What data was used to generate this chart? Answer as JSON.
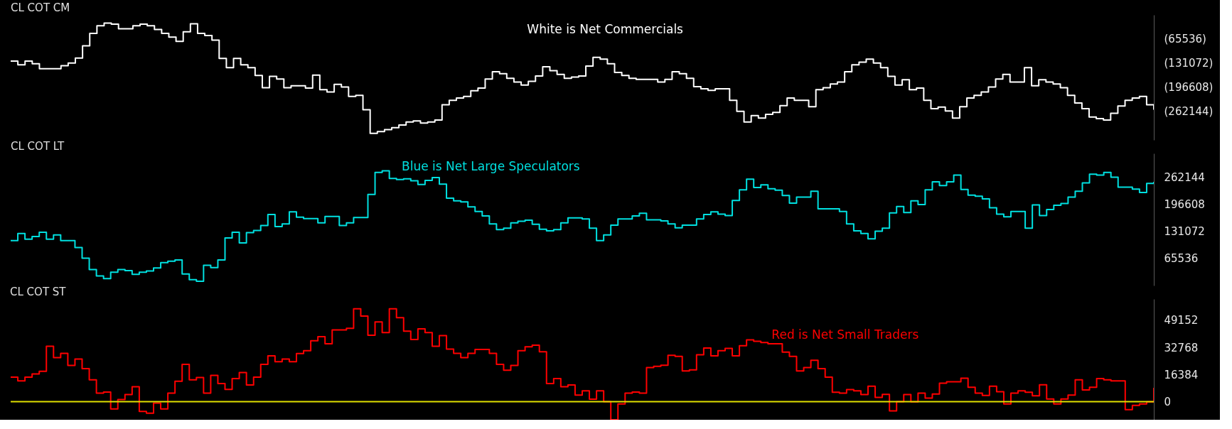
{
  "chart_data": [
    {
      "type": "step",
      "title": "CL COT CM",
      "annotations": [
        "White is Net Commercials"
      ],
      "tick_labels": "y",
      "grid": false,
      "categories": [
        null,
        null,
        null,
        null,
        null,
        null,
        null,
        null,
        null,
        null,
        null,
        null,
        null,
        null,
        null,
        null,
        null,
        null,
        null,
        null,
        null,
        null,
        null,
        null,
        null,
        null,
        null,
        null,
        null,
        null,
        null,
        null,
        null,
        null,
        null,
        null,
        null,
        null,
        null,
        null,
        null,
        null,
        null,
        null,
        null,
        null,
        null,
        null,
        null,
        null,
        null,
        null,
        null,
        null,
        null,
        null,
        null,
        null,
        null,
        null,
        null,
        null,
        null,
        null,
        null,
        null,
        null,
        null,
        null,
        null,
        null,
        null,
        null,
        null,
        null,
        null,
        null,
        null,
        null,
        null,
        null,
        null,
        null,
        null,
        null,
        null,
        null,
        null,
        null,
        null,
        null,
        null,
        null,
        null,
        null,
        null,
        null,
        null,
        null,
        null,
        null,
        null,
        null,
        null,
        null,
        null,
        null,
        null,
        null,
        null,
        null,
        null,
        null,
        null,
        null,
        null,
        null,
        null,
        null,
        null,
        null,
        null,
        null,
        null,
        null,
        null,
        null,
        null,
        null,
        null,
        null,
        null,
        null,
        null,
        null,
        null,
        null,
        null,
        null,
        null,
        null,
        null,
        null,
        null,
        null,
        null,
        null,
        null,
        null,
        null,
        null,
        null,
        null,
        null,
        null,
        null,
        null,
        null,
        null,
        null
      ],
      "ylim": [
        -340000,
        0
      ],
      "series": [
        {
          "color": "#ffffff",
          "values": [
            -125600,
            -135900,
            -125600,
            -132800,
            -146300,
            -146300,
            -146300,
            -138000,
            -130800,
            -117300,
            -84200,
            -50000,
            -29300,
            -22100,
            -25200,
            -37600,
            -37600,
            -29300,
            -25200,
            -29300,
            -39700,
            -50000,
            -60400,
            -71800,
            -45900,
            -24100,
            -50000,
            -56200,
            -68700,
            -118300,
            -143200,
            -118300,
            -135900,
            -143200,
            -164900,
            -198000,
            -167000,
            -174200,
            -198000,
            -192900,
            -192900,
            -199100,
            -163900,
            -203200,
            -209400,
            -188700,
            -196000,
            -221800,
            -218700,
            -258100,
            -322200,
            -317100,
            -311900,
            -306700,
            -299500,
            -291200,
            -288100,
            -294300,
            -291200,
            -286000,
            -244600,
            -232200,
            -226000,
            -221800,
            -206300,
            -199100,
            -174200,
            -154600,
            -159700,
            -172200,
            -182500,
            -190800,
            -180400,
            -165900,
            -141100,
            -151500,
            -161800,
            -172200,
            -169000,
            -165900,
            -139000,
            -115200,
            -120400,
            -132800,
            -156600,
            -164900,
            -172200,
            -175300,
            -175300,
            -175300,
            -182500,
            -175300,
            -154600,
            -159700,
            -172200,
            -194900,
            -201100,
            -205300,
            -201100,
            -201100,
            -232200,
            -262200,
            -291200,
            -273600,
            -280800,
            -270500,
            -265300,
            -246700,
            -226000,
            -232200,
            -232200,
            -249800,
            -203200,
            -198000,
            -187700,
            -182500,
            -154600,
            -135900,
            -128700,
            -120400,
            -130800,
            -143200,
            -167000,
            -190800,
            -176300,
            -203200,
            -199100,
            -232200,
            -255000,
            -250800,
            -261200,
            -280800,
            -249800,
            -226000,
            -218700,
            -209400,
            -196000,
            -174200,
            -161800,
            -182500,
            -182500,
            -143200,
            -192900,
            -176300,
            -182500,
            -187700,
            -198000,
            -218700,
            -239400,
            -255000,
            -277700,
            -281900,
            -286000,
            -267400,
            -247700,
            -232200,
            -226000,
            -221800,
            -244600,
            -258100
          ]
        }
      ],
      "yticks": [
        {
          "value": -65536,
          "label": "(65536)"
        },
        {
          "value": -131072,
          "label": "(131072)"
        },
        {
          "value": -196608,
          "label": "(196608)"
        },
        {
          "value": -262144,
          "label": "(262144)"
        }
      ]
    },
    {
      "type": "step",
      "title": "CL COT LT",
      "annotations": [
        "Blue is Net Large Speculators"
      ],
      "tick_labels": "y",
      "grid": false,
      "categories": [
        null,
        null,
        null,
        null,
        null,
        null,
        null,
        null,
        null,
        null,
        null,
        null,
        null,
        null,
        null,
        null,
        null,
        null,
        null,
        null,
        null,
        null,
        null,
        null,
        null,
        null,
        null,
        null,
        null,
        null,
        null,
        null,
        null,
        null,
        null,
        null,
        null,
        null,
        null,
        null,
        null,
        null,
        null,
        null,
        null,
        null,
        null,
        null,
        null,
        null,
        null,
        null,
        null,
        null,
        null,
        null,
        null,
        null,
        null,
        null,
        null,
        null,
        null,
        null,
        null,
        null,
        null,
        null,
        null,
        null,
        null,
        null,
        null,
        null,
        null,
        null,
        null,
        null,
        null,
        null,
        null,
        null,
        null,
        null,
        null,
        null,
        null,
        null,
        null,
        null,
        null,
        null,
        null,
        null,
        null,
        null,
        null,
        null,
        null,
        null,
        null,
        null,
        null,
        null,
        null,
        null,
        null,
        null,
        null,
        null,
        null,
        null,
        null,
        null,
        null,
        null,
        null,
        null,
        null,
        null,
        null,
        null,
        null,
        null,
        null,
        null,
        null,
        null,
        null,
        null,
        null,
        null,
        null,
        null,
        null,
        null,
        null,
        null,
        null,
        null,
        null,
        null,
        null,
        null,
        null,
        null,
        null,
        null,
        null,
        null,
        null,
        null,
        null,
        null,
        null,
        null,
        null,
        null,
        null,
        null,
        null
      ],
      "series": [
        {
          "color": "#00e0e0",
          "values": [
            108700,
            126200,
            112400,
            118800,
            128900,
            112400,
            122500,
            108700,
            108700,
            92200,
            66400,
            38900,
            23200,
            16800,
            32400,
            38900,
            36100,
            26900,
            32400,
            35200,
            42500,
            55400,
            59100,
            61800,
            27800,
            14000,
            10400,
            49000,
            43400,
            61800,
            115100,
            128900,
            103200,
            128000,
            133500,
            145500,
            172100,
            142700,
            149100,
            178500,
            165700,
            162000,
            162000,
            151900,
            167500,
            167500,
            145500,
            151900,
            164800,
            164800,
            220800,
            274100,
            277800,
            259400,
            256700,
            258500,
            253900,
            244700,
            254800,
            261300,
            245600,
            211600,
            205200,
            202400,
            190500,
            179500,
            168400,
            149100,
            135300,
            139000,
            151900,
            155600,
            158300,
            148200,
            136300,
            132600,
            135300,
            151900,
            163800,
            163800,
            161100,
            139000,
            108700,
            122500,
            146400,
            161100,
            161100,
            168400,
            174900,
            159200,
            159200,
            156500,
            149100,
            139900,
            146400,
            146400,
            161100,
            172100,
            178500,
            173000,
            169400,
            206100,
            231800,
            257600,
            237400,
            243800,
            234600,
            230900,
            218100,
            199700,
            214400,
            214400,
            228200,
            185900,
            185900,
            185900,
            179500,
            149100,
            132600,
            126200,
            113300,
            131700,
            139000,
            175800,
            191400,
            176700,
            205200,
            196000,
            231800,
            251100,
            242000,
            251100,
            267700,
            232800,
            219000,
            216200,
            209800,
            188600,
            173000,
            166600,
            179500,
            179500,
            139000,
            195100,
            169400,
            184100,
            194200,
            198800,
            214400,
            228200,
            248400,
            269500,
            267700,
            274100,
            262200,
            238300,
            238300,
            233700,
            225400,
            247500,
            251100
          ]
        }
      ],
      "ylim": [
        0,
        320000
      ],
      "yticks": [
        65536,
        131072,
        196608,
        262144
      ]
    },
    {
      "type": "step",
      "title": "CL COT ST",
      "annotations": [
        "Red is Net Small Traders"
      ],
      "tick_labels": "y",
      "grid": false,
      "categories": [
        null,
        null,
        null,
        null,
        null,
        null,
        null,
        null,
        null,
        null,
        null,
        null,
        null,
        null,
        null,
        null,
        null,
        null,
        null,
        null,
        null,
        null,
        null,
        null,
        null,
        null,
        null,
        null,
        null,
        null,
        null,
        null,
        null,
        null,
        null,
        null,
        null,
        null,
        null,
        null,
        null,
        null,
        null,
        null,
        null,
        null,
        null,
        null,
        null,
        null,
        null,
        null,
        null,
        null,
        null,
        null,
        null,
        null,
        null,
        null,
        null,
        null,
        null,
        null,
        null,
        null,
        null,
        null,
        null,
        null,
        null,
        null,
        null,
        null,
        null,
        null,
        null,
        null,
        null,
        null,
        null,
        null,
        null,
        null,
        null,
        null,
        null,
        null,
        null,
        null,
        null,
        null,
        null,
        null,
        null,
        null,
        null,
        null,
        null,
        null,
        null,
        null,
        null,
        null,
        null,
        null,
        null,
        null,
        null,
        null,
        null,
        null,
        null,
        null,
        null,
        null,
        null,
        null,
        null,
        null,
        null,
        null,
        null,
        null,
        null,
        null,
        null,
        null,
        null,
        null,
        null,
        null,
        null,
        null,
        null,
        null,
        null,
        null,
        null,
        null,
        null,
        null,
        null,
        null,
        null,
        null,
        null,
        null,
        null,
        null,
        null,
        null,
        null,
        null,
        null,
        null,
        null,
        null,
        null,
        null,
        null
      ],
      "series": [
        {
          "color": "#ff0000",
          "values": [
            14800,
            12500,
            14800,
            16700,
            18300,
            33400,
            26600,
            29200,
            21800,
            25700,
            19900,
            13200,
            5100,
            5800,
            -4400,
            1200,
            4200,
            9000,
            -6000,
            -7000,
            -900,
            -4400,
            5100,
            12300,
            22500,
            13200,
            14600,
            5100,
            15800,
            10900,
            7400,
            13900,
            17600,
            10000,
            14800,
            22500,
            27600,
            24100,
            25700,
            24100,
            29000,
            30800,
            36800,
            39200,
            35000,
            43300,
            43300,
            44300,
            56100,
            51700,
            40100,
            48200,
            41700,
            56100,
            50700,
            42600,
            37500,
            44000,
            41700,
            33400,
            39900,
            31700,
            29200,
            26600,
            29200,
            31500,
            31500,
            29200,
            22500,
            19000,
            21800,
            30800,
            33100,
            34100,
            30100,
            10900,
            13900,
            9000,
            10000,
            3900,
            6500,
            1400,
            6500,
            0,
            -11000,
            -1400,
            5100,
            5800,
            5100,
            20600,
            21300,
            22000,
            28000,
            27300,
            18500,
            19200,
            28300,
            32400,
            27600,
            30800,
            32200,
            27600,
            33800,
            37300,
            36400,
            35700,
            35000,
            35000,
            29900,
            27300,
            18500,
            20600,
            25000,
            19900,
            14800,
            5600,
            5100,
            7200,
            6500,
            4200,
            9300,
            2500,
            4400,
            -5600,
            0,
            4200,
            -200,
            5100,
            2100,
            4600,
            11100,
            12000,
            12000,
            14100,
            8600,
            5100,
            3700,
            9300,
            6000,
            -1400,
            5100,
            6500,
            5600,
            3500,
            10200,
            1600,
            -1400,
            1600,
            3900,
            13200,
            7000,
            8600,
            13900,
            13200,
            12500,
            12500,
            -4900,
            -2300,
            -1400,
            -200,
            8300
          ]
        }
      ],
      "ylim": [
        -11000,
        62000
      ],
      "yticks": [
        0,
        16384,
        32768,
        49152
      ],
      "ref_lines": [
        {
          "axis": "y",
          "value": 0,
          "color": "#e0e000"
        }
      ]
    }
  ]
}
